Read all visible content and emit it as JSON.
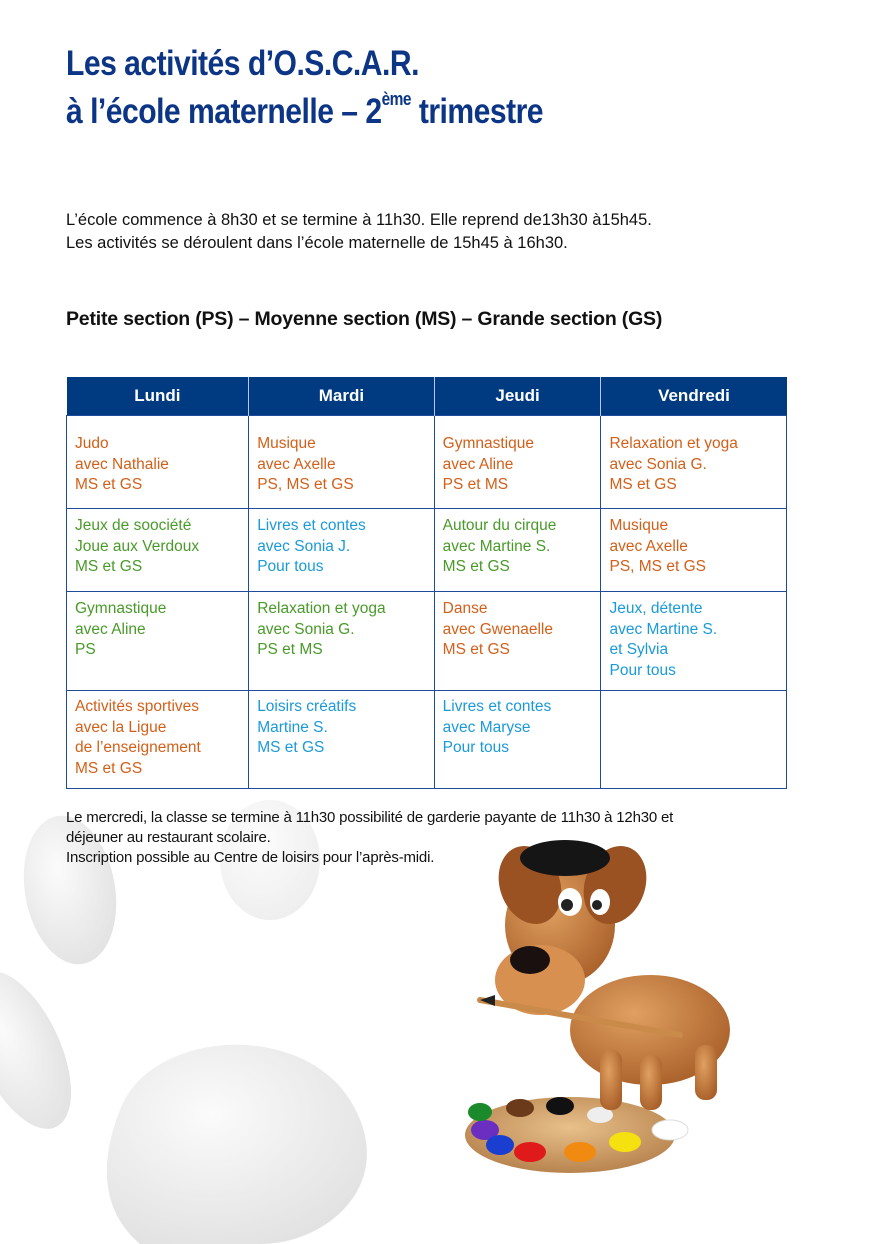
{
  "title": {
    "line1": "Les activités d’O.S.C.A.R.",
    "line2_pre": "à l’école maternelle – 2",
    "line2_sup": "ème",
    "line2_post": " trimestre"
  },
  "intro": {
    "line1": "L’école commence à 8h30 et se termine à 11h30. Elle reprend de13h30 à15h45.",
    "line2": "Les activités se déroulent dans l’école maternelle de 15h45 à 16h30."
  },
  "section_title": "Petite section (PS) – Moyenne section (MS) – Grande section (GS)",
  "colors": {
    "header": "#003a80",
    "title": "#0c3586",
    "orange": "#d2601a",
    "green": "#4a9a2a",
    "blue": "#1b9ad8"
  },
  "table": {
    "headers": [
      "Lundi",
      "Mardi",
      "Jeudi",
      "Vendredi"
    ],
    "rows": [
      [
        {
          "color": "orange",
          "lines": [
            "Judo",
            "avec Nathalie",
            "MS et GS"
          ]
        },
        {
          "color": "orange",
          "lines": [
            "Musique",
            "avec Axelle",
            "PS, MS et GS"
          ]
        },
        {
          "color": "orange",
          "lines": [
            "Gymnastique",
            "avec Aline",
            "PS et MS"
          ]
        },
        {
          "color": "orange",
          "lines": [
            "Relaxation et yoga",
            "avec Sonia G.",
            "MS et GS"
          ]
        }
      ],
      [
        {
          "color": "green",
          "lines": [
            "Jeux de soociété",
            "Joue aux Verdoux",
            "MS et GS"
          ]
        },
        {
          "color": "blue",
          "lines": [
            "Livres et contes",
            "avec Sonia J.",
            "Pour tous"
          ]
        },
        {
          "color": "green",
          "lines": [
            "Autour du cirque",
            "avec Martine S.",
            "MS et GS"
          ]
        },
        {
          "color": "orange",
          "lines": [
            "Musique",
            "avec Axelle",
            "PS, MS et GS"
          ]
        }
      ],
      [
        {
          "color": "green",
          "lines": [
            "Gymnastique",
            "avec Aline",
            "PS"
          ]
        },
        {
          "color": "green",
          "lines": [
            "Relaxation et yoga",
            "avec Sonia G.",
            "PS et MS"
          ]
        },
        {
          "color": "orange",
          "lines": [
            "Danse",
            "avec Gwenaelle",
            "MS et GS"
          ]
        },
        {
          "color": "blue",
          "lines": [
            "Jeux, détente",
            "avec Martine S.",
            "et Sylvia",
            "Pour tous"
          ]
        }
      ],
      [
        {
          "color": "orange",
          "lines": [
            "Activités sportives",
            "avec la Ligue",
            "de l’enseignement",
            "MS et GS"
          ]
        },
        {
          "color": "blue",
          "lines": [
            "Loisirs créatifs",
            "Martine S.",
            "MS et GS"
          ]
        },
        {
          "color": "blue",
          "lines": [
            "Livres et contes",
            "avec Maryse",
            "Pour tous"
          ]
        },
        {
          "color": "blue",
          "lines": []
        }
      ]
    ]
  },
  "note": {
    "line1": "Le mercredi, la classe se termine à 11h30 possibilité de garderie payante de 11h30 à 12h30 et",
    "line2": "déjeuner au restaurant scolaire.",
    "line3": "Inscription possible au Centre de loisirs pour l’après-midi."
  },
  "illustration": "dog-painter-with-palette",
  "background": "paw-print-watermark"
}
